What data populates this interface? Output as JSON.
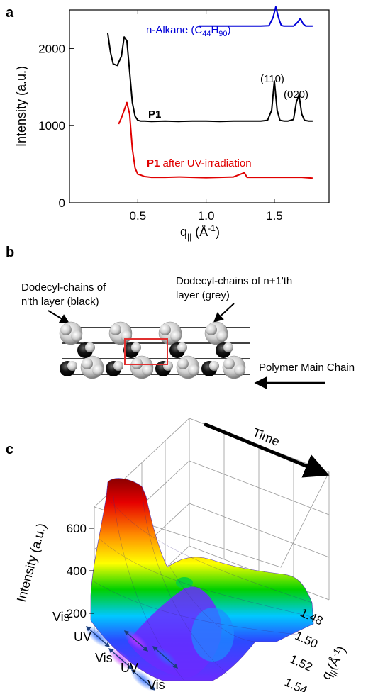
{
  "panels": {
    "a": "a",
    "b": "b",
    "c": "c"
  },
  "chart_data": [
    {
      "type": "line",
      "xlabel": "q",
      "xlabel_sub": "||",
      "xlabel_unit": " (Å",
      "xlabel_unit_sup": "-1",
      "xlabel_unit_close": ")",
      "ylabel": "Intensity (a.u.)",
      "xlim": [
        0.0,
        1.9
      ],
      "ylim": [
        0,
        2500
      ],
      "xticks": [
        0.0,
        0.5,
        1.0,
        1.5
      ],
      "xtick_labels": [
        "",
        "0.5",
        "1.0",
        "1.5"
      ],
      "yticks": [
        0,
        1000,
        2000
      ],
      "ytick_labels": [
        "0",
        "1000",
        "2000"
      ],
      "grid": false,
      "series": [
        {
          "name_prefix": "n-Alkane (C",
          "name_sub1": "44",
          "name_mid": "H",
          "name_sub2": "90",
          "name_suffix": ")",
          "color": "#0000d8",
          "x": [
            0.95,
            1.0,
            1.1,
            1.2,
            1.3,
            1.4,
            1.46,
            1.49,
            1.51,
            1.53,
            1.55,
            1.57,
            1.6,
            1.64,
            1.67,
            1.69,
            1.71,
            1.73,
            1.75,
            1.78
          ],
          "y": [
            2290,
            2290,
            2290,
            2290,
            2290,
            2290,
            2295,
            2400,
            2540,
            2400,
            2300,
            2290,
            2290,
            2290,
            2340,
            2390,
            2320,
            2290,
            2290,
            2290
          ]
        },
        {
          "name": "P1",
          "color": "#000000",
          "x": [
            0.28,
            0.3,
            0.32,
            0.35,
            0.38,
            0.4,
            0.42,
            0.44,
            0.46,
            0.48,
            0.5,
            0.52,
            0.55,
            0.6,
            0.7,
            0.8,
            0.9,
            1.0,
            1.1,
            1.2,
            1.3,
            1.4,
            1.45,
            1.48,
            1.5,
            1.52,
            1.54,
            1.57,
            1.6,
            1.64,
            1.66,
            1.68,
            1.7,
            1.72,
            1.75,
            1.78
          ],
          "y": [
            2200,
            1950,
            1800,
            1780,
            1900,
            2150,
            2100,
            1700,
            1300,
            1120,
            1070,
            1060,
            1060,
            1055,
            1060,
            1055,
            1060,
            1060,
            1055,
            1060,
            1060,
            1060,
            1070,
            1200,
            1580,
            1200,
            1070,
            1060,
            1060,
            1080,
            1300,
            1400,
            1150,
            1070,
            1060,
            1060
          ]
        },
        {
          "name_bold": "P1",
          "name_rest": " after UV-irradiation",
          "color": "#e00000",
          "x": [
            0.36,
            0.38,
            0.4,
            0.42,
            0.44,
            0.46,
            0.48,
            0.5,
            0.52,
            0.55,
            0.6,
            0.7,
            0.8,
            0.9,
            1.0,
            1.1,
            1.2,
            1.28,
            1.3,
            1.4,
            1.5,
            1.6,
            1.7,
            1.78
          ],
          "y": [
            1020,
            1100,
            1200,
            1300,
            1150,
            700,
            450,
            370,
            360,
            340,
            330,
            330,
            335,
            330,
            325,
            330,
            335,
            390,
            330,
            330,
            330,
            330,
            330,
            320
          ]
        }
      ],
      "annotations": [
        "(110)",
        "(020)"
      ]
    },
    {
      "type": "area",
      "title": "",
      "zlabel": "Intensity (a.u.)",
      "ylabel": "q",
      "ylabel_sub": "||",
      "ylabel_unit": "(Å",
      "ylabel_unit_sup": "-1",
      "ylabel_unit_close": ")",
      "zticks": [
        200,
        400,
        600
      ],
      "yticks": [
        1.48,
        1.5,
        1.52,
        1.54
      ],
      "ytick_labels": [
        "1.48",
        "1.50",
        "1.52",
        "1.54"
      ],
      "time_label": "Time",
      "sequence": [
        "Vis",
        "UV",
        "Vis",
        "UV",
        "Vis"
      ]
    }
  ],
  "diagram_b": {
    "label_n": [
      "Dodecyl-chains of",
      "n'th layer (black)"
    ],
    "label_n1": [
      "Dodecyl-chains of n+1'th",
      "layer (grey)"
    ],
    "label_main": "Polymer Main Chain"
  }
}
